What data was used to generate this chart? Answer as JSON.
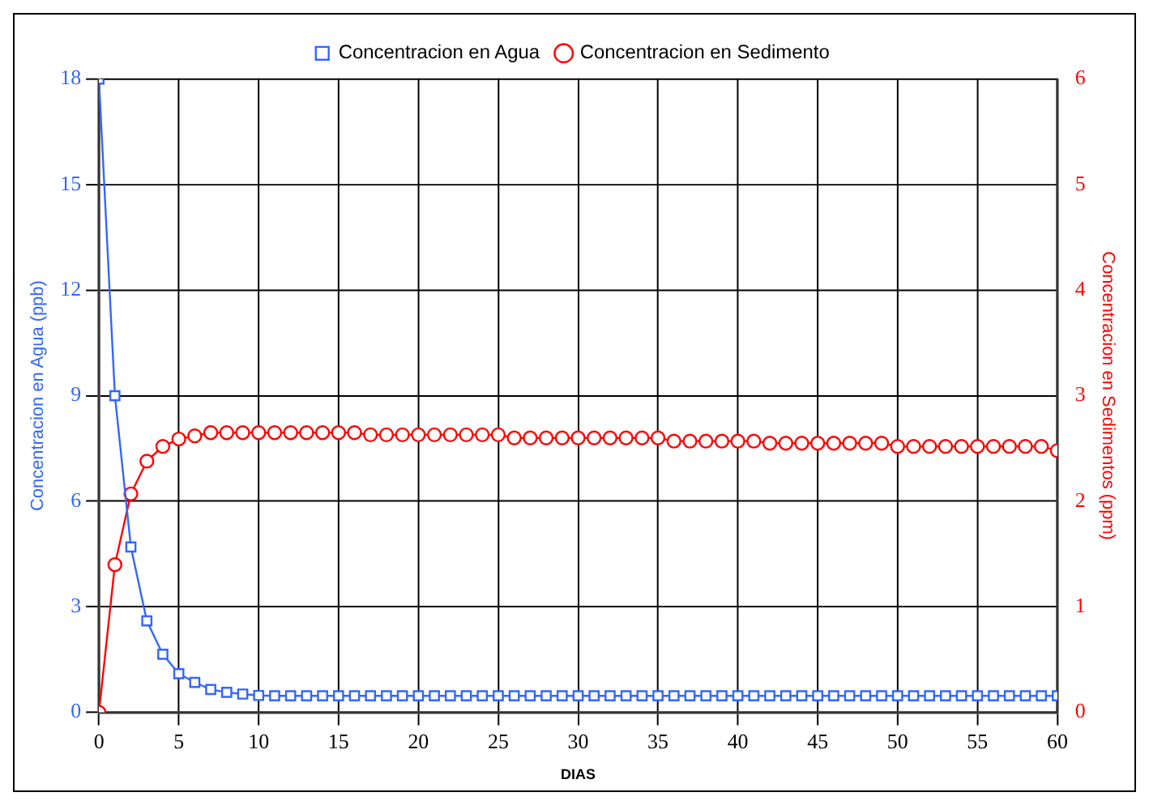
{
  "chart_data": {
    "type": "line",
    "xlabel": "DIAS",
    "ylabel": "Concentracion en Agua (ppb)",
    "y2label": "Concentracion en Sedimentos (ppm)",
    "x": [
      0,
      1,
      2,
      3,
      4,
      5,
      6,
      7,
      8,
      9,
      10,
      11,
      12,
      13,
      14,
      15,
      16,
      17,
      18,
      19,
      20,
      21,
      22,
      23,
      24,
      25,
      26,
      27,
      28,
      29,
      30,
      31,
      32,
      33,
      34,
      35,
      36,
      37,
      38,
      39,
      40,
      41,
      42,
      43,
      44,
      45,
      46,
      47,
      48,
      49,
      50,
      51,
      52,
      53,
      54,
      55,
      56,
      57,
      58,
      59,
      60
    ],
    "xlim": [
      0,
      60
    ],
    "xticks": [
      0,
      5,
      10,
      15,
      20,
      25,
      30,
      35,
      40,
      45,
      50,
      55,
      60
    ],
    "ylim": [
      0,
      18
    ],
    "yticks": [
      0,
      3,
      6,
      9,
      12,
      15,
      18
    ],
    "y2lim": [
      0,
      6
    ],
    "y2ticks": [
      0,
      1,
      2,
      3,
      4,
      5,
      6
    ],
    "grid": true,
    "legend": "top",
    "line_style": "solid",
    "series": [
      {
        "name": "Concentracion en Agua",
        "color": "#3366ff",
        "marker": "square",
        "values": [
          18,
          9,
          4.7,
          2.6,
          1.65,
          1.1,
          0.85,
          0.65,
          0.57,
          0.52,
          0.48,
          0.47,
          0.47,
          0.47,
          0.47,
          0.47,
          0.47,
          0.47,
          0.47,
          0.47,
          0.47,
          0.47,
          0.47,
          0.47,
          0.47,
          0.47,
          0.47,
          0.47,
          0.47,
          0.47,
          0.47,
          0.47,
          0.47,
          0.47,
          0.47,
          0.47,
          0.47,
          0.47,
          0.47,
          0.47,
          0.47,
          0.47,
          0.47,
          0.47,
          0.47,
          0.47,
          0.47,
          0.47,
          0.47,
          0.47,
          0.47,
          0.47,
          0.47,
          0.47,
          0.47,
          0.47,
          0.47,
          0.47,
          0.47,
          0.47,
          0.47
        ]
      },
      {
        "name": "Concentracion en Sedimento",
        "color": "#ff0000",
        "marker": "circle",
        "axis": "y2",
        "values": [
          0,
          1.4,
          2.07,
          2.38,
          2.52,
          2.59,
          2.62,
          2.65,
          2.65,
          2.65,
          2.65,
          2.65,
          2.65,
          2.65,
          2.65,
          2.65,
          2.65,
          2.63,
          2.63,
          2.63,
          2.63,
          2.63,
          2.63,
          2.63,
          2.63,
          2.63,
          2.6,
          2.6,
          2.6,
          2.6,
          2.6,
          2.6,
          2.6,
          2.6,
          2.6,
          2.6,
          2.57,
          2.57,
          2.57,
          2.57,
          2.57,
          2.57,
          2.55,
          2.55,
          2.55,
          2.55,
          2.55,
          2.55,
          2.55,
          2.55,
          2.52,
          2.52,
          2.52,
          2.52,
          2.52,
          2.52,
          2.52,
          2.52,
          2.52,
          2.52,
          2.48
        ]
      }
    ]
  }
}
